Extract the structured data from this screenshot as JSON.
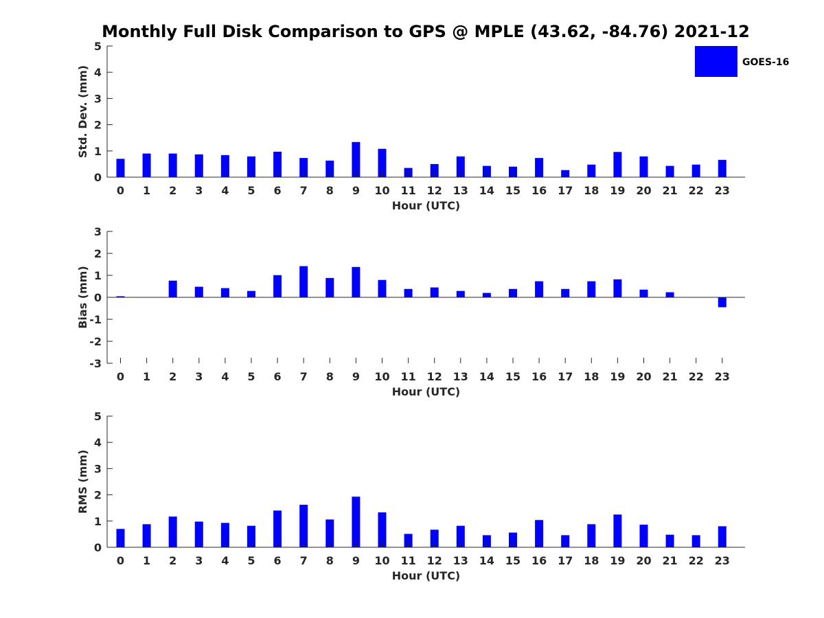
{
  "title": "Monthly Full Disk Comparison to GPS @ MPLE (43.62, -84.76) 2021-12",
  "legend": {
    "label": "GOES-16",
    "color": "#0000ff",
    "position": "top-right"
  },
  "colors": {
    "bar": "#0000ff",
    "axis": "#262626",
    "background": "#ffffff"
  },
  "chart_data": [
    {
      "type": "bar",
      "ylabel": "Std. Dev. (mm)",
      "xlabel": "Hour (UTC)",
      "ylim": [
        0,
        5
      ],
      "yticks": [
        "0",
        "1",
        "2",
        "3",
        "4",
        "5"
      ],
      "grid": false,
      "categories": [
        "0",
        "1",
        "2",
        "3",
        "4",
        "5",
        "6",
        "7",
        "8",
        "9",
        "10",
        "11",
        "12",
        "13",
        "14",
        "15",
        "16",
        "17",
        "18",
        "19",
        "20",
        "21",
        "22",
        "23"
      ],
      "series": [
        {
          "name": "GOES-16",
          "values": [
            0.7,
            0.9,
            0.9,
            0.87,
            0.84,
            0.79,
            0.97,
            0.73,
            0.63,
            1.34,
            1.08,
            0.35,
            0.5,
            0.79,
            0.43,
            0.4,
            0.73,
            0.27,
            0.48,
            0.96,
            0.79,
            0.43,
            0.48,
            0.66
          ]
        }
      ]
    },
    {
      "type": "bar",
      "ylabel": "Bias (mm)",
      "xlabel": "Hour (UTC)",
      "ylim": [
        -3,
        3
      ],
      "yticks": [
        "-3",
        "-2",
        "-1",
        "0",
        "1",
        "2",
        "3"
      ],
      "grid": false,
      "categories": [
        "0",
        "1",
        "2",
        "3",
        "4",
        "5",
        "6",
        "7",
        "8",
        "9",
        "10",
        "11",
        "12",
        "13",
        "14",
        "15",
        "16",
        "17",
        "18",
        "19",
        "20",
        "21",
        "22",
        "23"
      ],
      "series": [
        {
          "name": "GOES-16",
          "values": [
            0.05,
            0.0,
            0.76,
            0.48,
            0.42,
            0.29,
            1.01,
            1.42,
            0.88,
            1.38,
            0.79,
            0.38,
            0.45,
            0.29,
            0.2,
            0.38,
            0.73,
            0.38,
            0.73,
            0.82,
            0.35,
            0.23,
            0.0,
            -0.45
          ]
        }
      ]
    },
    {
      "type": "bar",
      "ylabel": "RMS (mm)",
      "xlabel": "Hour (UTC)",
      "ylim": [
        0,
        5
      ],
      "yticks": [
        "0",
        "1",
        "2",
        "3",
        "4",
        "5"
      ],
      "grid": false,
      "categories": [
        "0",
        "1",
        "2",
        "3",
        "4",
        "5",
        "6",
        "7",
        "8",
        "9",
        "10",
        "11",
        "12",
        "13",
        "14",
        "15",
        "16",
        "17",
        "18",
        "19",
        "20",
        "21",
        "22",
        "23"
      ],
      "series": [
        {
          "name": "GOES-16",
          "values": [
            0.7,
            0.88,
            1.17,
            0.98,
            0.93,
            0.82,
            1.4,
            1.62,
            1.06,
            1.93,
            1.33,
            0.51,
            0.67,
            0.82,
            0.46,
            0.56,
            1.04,
            0.46,
            0.88,
            1.25,
            0.86,
            0.48,
            0.46,
            0.8
          ]
        }
      ]
    }
  ]
}
